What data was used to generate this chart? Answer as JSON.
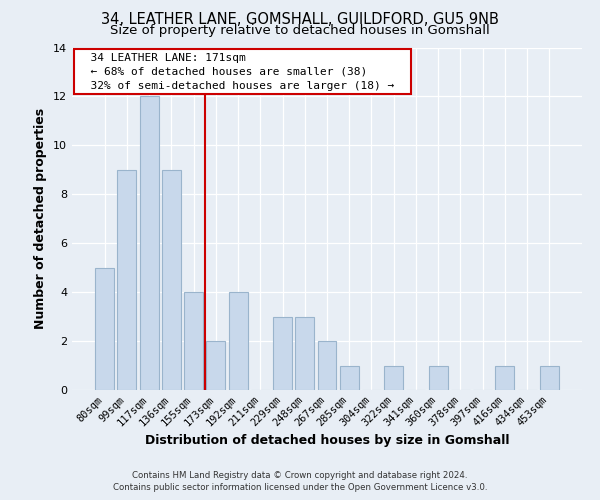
{
  "title": "34, LEATHER LANE, GOMSHALL, GUILDFORD, GU5 9NB",
  "subtitle": "Size of property relative to detached houses in Gomshall",
  "xlabel": "Distribution of detached houses by size in Gomshall",
  "ylabel": "Number of detached properties",
  "bar_labels": [
    "80sqm",
    "99sqm",
    "117sqm",
    "136sqm",
    "155sqm",
    "173sqm",
    "192sqm",
    "211sqm",
    "229sqm",
    "248sqm",
    "267sqm",
    "285sqm",
    "304sqm",
    "322sqm",
    "341sqm",
    "360sqm",
    "378sqm",
    "397sqm",
    "416sqm",
    "434sqm",
    "453sqm"
  ],
  "bar_values": [
    5,
    9,
    12,
    9,
    4,
    2,
    4,
    0,
    3,
    3,
    2,
    1,
    0,
    1,
    0,
    1,
    0,
    0,
    1,
    0,
    1
  ],
  "bar_color": "#c8d8eb",
  "bar_edge_color": "#9ab4cc",
  "vline_color": "#cc0000",
  "annotation_title": "34 LEATHER LANE: 171sqm",
  "annotation_line1": "← 68% of detached houses are smaller (38)",
  "annotation_line2": "32% of semi-detached houses are larger (18) →",
  "annotation_box_color": "#ffffff",
  "annotation_box_edge": "#cc0000",
  "ylim": [
    0,
    14
  ],
  "yticks": [
    0,
    2,
    4,
    6,
    8,
    10,
    12,
    14
  ],
  "bg_color": "#e8eef5",
  "grid_color": "#ffffff",
  "footnote1": "Contains HM Land Registry data © Crown copyright and database right 2024.",
  "footnote2": "Contains public sector information licensed under the Open Government Licence v3.0.",
  "title_fontsize": 10.5,
  "subtitle_fontsize": 9.5,
  "tick_fontsize": 7.5,
  "label_fontsize": 9,
  "annot_fontsize": 8
}
